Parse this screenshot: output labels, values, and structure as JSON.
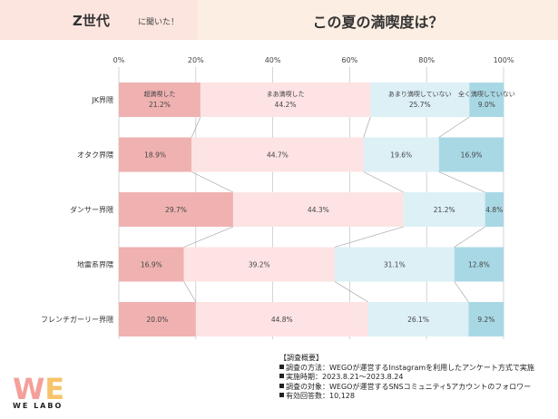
{
  "header": {
    "left_main": "Z世代",
    "left_sub": "に聞いた！",
    "right_title": "この夏の満喫度は？"
  },
  "chart_data": {
    "type": "bar",
    "orientation": "horizontal",
    "stacked": "percent",
    "title": "この夏の満喫度は？",
    "categories": [
      "JK界隈",
      "オタク界隈",
      "ダンサー界隈",
      "地雷系界隈",
      "フレンチガーリー界隈"
    ],
    "series": [
      {
        "name": "超満喫した",
        "values": [
          21.2,
          18.9,
          29.7,
          16.9,
          20.0
        ]
      },
      {
        "name": "まあ満喫した",
        "values": [
          44.2,
          44.7,
          44.3,
          39.2,
          44.8
        ]
      },
      {
        "name": "あまり満喫していない",
        "values": [
          25.7,
          19.6,
          21.2,
          31.1,
          26.1
        ]
      },
      {
        "name": "全く満喫していない",
        "values": [
          9.0,
          16.9,
          4.8,
          12.8,
          9.2
        ]
      }
    ],
    "xlim": [
      0,
      100
    ],
    "x_ticks": [
      "0%",
      "20%",
      "40%",
      "60%",
      "80%",
      "100%"
    ],
    "grid": true,
    "legend": "inside first bar",
    "colors": [
      "#f0b1b1",
      "#fde3e3",
      "#dcf0f6",
      "#a9d8e5"
    ]
  },
  "summary": {
    "title": "【調査概要】",
    "lines": [
      "調査の方法：WEGOが運営するInstagramを利用したアンケート方式で実施",
      "実施時期：2023.8.21〜2023.8.24",
      "調査の対象：WEGOが運営するSNSコミュニティ5アカウントのフォロワー",
      "有効回答数：10,128"
    ]
  },
  "logo": {
    "mark": "WE",
    "name": "WE LABO",
    "colors": [
      "#f4a09a",
      "#f7c46b",
      "#8fcfe2",
      "#b39ddb"
    ]
  }
}
